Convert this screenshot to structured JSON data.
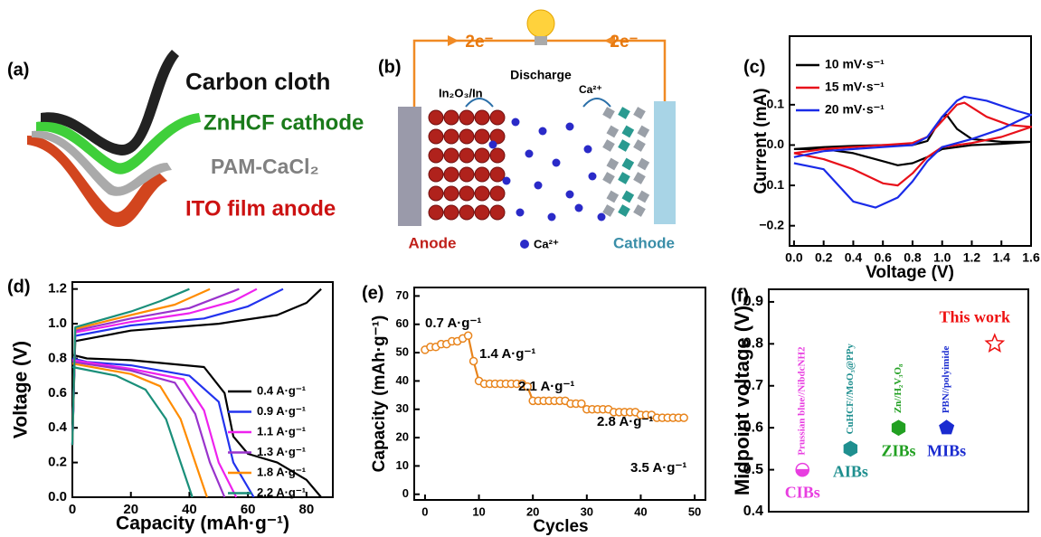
{
  "diagrams": {
    "a": {
      "panel": "(a)",
      "layers": [
        "Carbon cloth",
        "ZnHCF cathode",
        "PAM-CaCl₂",
        "ITO film anode"
      ]
    },
    "b": {
      "panel": "(b)",
      "electron_left": "2e⁻",
      "electron_right": "2e⁻",
      "process": "Discharge",
      "anode_material": "In₂O₃/In",
      "ion_label": "Ca²⁺",
      "anode": "Anode",
      "legend_ion": "Ca²⁺",
      "cathode": "Cathode"
    }
  },
  "chart_data": [
    {
      "type": "line",
      "panel": "(c)",
      "xlabel": "Voltage (V)",
      "ylabel": "Current (mA)",
      "xlim": [
        -0.03,
        1.6
      ],
      "ylim": [
        -0.25,
        0.27
      ],
      "xticks": [
        {
          "value": 0,
          "label": "0.0"
        },
        0.2,
        0.4,
        0.6,
        0.8,
        {
          "value": 1,
          "label": "1.0"
        },
        1.2,
        1.4,
        1.6
      ],
      "yticks": [
        {
          "value": -0.2,
          "label": "−0.2"
        },
        {
          "value": -0.1,
          "label": "−0.1"
        },
        {
          "value": 0,
          "label": "0.0"
        },
        0.1
      ],
      "series": [
        {
          "name": "10 mV·s⁻¹",
          "color": "#000000",
          "x": [
            0,
            0.2,
            0.4,
            0.6,
            0.8,
            0.9,
            0.95,
            1.0,
            1.03,
            1.1,
            1.2,
            1.4,
            1.6,
            1.4,
            1.2,
            1.0,
            0.9,
            0.8,
            0.7,
            0.6,
            0.4,
            0.2,
            0
          ],
          "values": [
            -0.01,
            -0.005,
            -0.002,
            0,
            0,
            0.01,
            0.04,
            0.07,
            0.075,
            0.04,
            0.015,
            0.008,
            0.008,
            0.003,
            0,
            -0.01,
            -0.03,
            -0.045,
            -0.05,
            -0.04,
            -0.02,
            -0.01,
            -0.01
          ]
        },
        {
          "name": "15 mV·s⁻¹",
          "color": "#e8101a",
          "x": [
            0,
            0.2,
            0.4,
            0.6,
            0.8,
            0.9,
            1.0,
            1.1,
            1.15,
            1.3,
            1.45,
            1.6,
            1.4,
            1.2,
            1.0,
            0.9,
            0.8,
            0.7,
            0.6,
            0.4,
            0.2,
            0
          ],
          "values": [
            -0.02,
            -0.01,
            -0.005,
            0,
            0.005,
            0.02,
            0.06,
            0.1,
            0.105,
            0.07,
            0.05,
            0.045,
            0.02,
            0.005,
            -0.005,
            -0.03,
            -0.07,
            -0.1,
            -0.095,
            -0.06,
            -0.035,
            -0.02
          ]
        },
        {
          "name": "20 mV·s⁻¹",
          "color": "#1a2be8",
          "x": [
            0,
            0.2,
            0.4,
            0.6,
            0.8,
            0.9,
            1.0,
            1.1,
            1.15,
            1.3,
            1.5,
            1.6,
            1.4,
            1.2,
            1.0,
            0.9,
            0.8,
            0.7,
            0.55,
            0.4,
            0.2,
            0
          ],
          "values": [
            -0.03,
            -0.015,
            -0.01,
            -0.005,
            0,
            0.02,
            0.07,
            0.11,
            0.12,
            0.11,
            0.085,
            0.075,
            0.04,
            0.015,
            -0.005,
            -0.04,
            -0.09,
            -0.13,
            -0.155,
            -0.14,
            -0.06,
            -0.045
          ]
        }
      ]
    },
    {
      "type": "line",
      "panel": "(d)",
      "xlabel": "Capacity (mAh·g⁻¹)",
      "ylabel": "Voltage (V)",
      "xlim": [
        0,
        89
      ],
      "ylim": [
        0,
        1.24
      ],
      "xticks": [
        0,
        20,
        40,
        60,
        80
      ],
      "yticks": [
        {
          "value": 0,
          "label": "0.0"
        },
        0.2,
        0.4,
        0.6,
        0.8,
        {
          "value": 1,
          "label": "1.0"
        },
        1.2
      ],
      "series": [
        {
          "name": "0.4 A·g⁻¹",
          "color": "#000000",
          "x": [
            0,
            1,
            20,
            50,
            70,
            80,
            85,
            null,
            0,
            5,
            20,
            45,
            52,
            55,
            60,
            70,
            80,
            85
          ],
          "values": [
            0.3,
            0.9,
            0.96,
            1.0,
            1.05,
            1.12,
            1.2,
            null,
            0.82,
            0.8,
            0.79,
            0.75,
            0.6,
            0.35,
            0.25,
            0.2,
            0.1,
            0
          ]
        },
        {
          "name": "0.9 A·g⁻¹",
          "color": "#2233ee",
          "x": [
            0,
            1,
            20,
            45,
            60,
            72,
            null,
            0,
            5,
            20,
            40,
            50,
            55,
            62
          ],
          "values": [
            0.3,
            0.93,
            0.99,
            1.03,
            1.1,
            1.2,
            null,
            0.8,
            0.78,
            0.76,
            0.7,
            0.55,
            0.2,
            0
          ]
        },
        {
          "name": "1.1 A·g⁻¹",
          "color": "#ee22ee",
          "x": [
            0,
            1,
            20,
            40,
            55,
            63,
            null,
            0,
            20,
            38,
            45,
            50,
            56
          ],
          "values": [
            0.3,
            0.95,
            1.01,
            1.06,
            1.13,
            1.2,
            null,
            0.79,
            0.74,
            0.68,
            0.5,
            0.2,
            0
          ]
        },
        {
          "name": "1.3 A·g⁻¹",
          "color": "#9933cc",
          "x": [
            0,
            1,
            20,
            40,
            57,
            null,
            0,
            20,
            35,
            42,
            47,
            52
          ],
          "values": [
            0.3,
            0.96,
            1.03,
            1.09,
            1.2,
            null,
            0.78,
            0.73,
            0.66,
            0.48,
            0.2,
            0
          ]
        },
        {
          "name": "1.8 A·g⁻¹",
          "color": "#ff8c00",
          "x": [
            0,
            1,
            20,
            35,
            47,
            null,
            0,
            20,
            30,
            37,
            42,
            46
          ],
          "values": [
            0.3,
            0.97,
            1.05,
            1.11,
            1.2,
            null,
            0.77,
            0.71,
            0.64,
            0.45,
            0.2,
            0
          ]
        },
        {
          "name": "2.2 A·g⁻¹",
          "color": "#1a8f7a",
          "x": [
            0,
            1,
            20,
            30,
            40,
            null,
            0,
            15,
            25,
            32,
            37,
            41
          ],
          "values": [
            0.3,
            0.98,
            1.07,
            1.13,
            1.2,
            null,
            0.75,
            0.7,
            0.62,
            0.45,
            0.2,
            0
          ]
        }
      ]
    },
    {
      "type": "line",
      "panel": "(e)",
      "xlabel": "Cycles",
      "ylabel": "Capacity (mAh·g⁻¹)",
      "markers": true,
      "xlim": [
        -2,
        52
      ],
      "ylim": [
        -2,
        73
      ],
      "xticks": [
        0,
        10,
        20,
        30,
        40,
        50
      ],
      "yticks": [
        0,
        10,
        20,
        30,
        40,
        50,
        60,
        70
      ],
      "annotations": [
        "0.7 A·g⁻¹",
        "1.4 A·g⁻¹",
        "2.1 A·g⁻¹",
        "2.8 A·g⁻¹",
        "3.5 A·g⁻¹"
      ],
      "series": [
        {
          "color": "#e8841c",
          "x": [
            0,
            1,
            2,
            3,
            4,
            5,
            6,
            7,
            8,
            9,
            10,
            11,
            12,
            13,
            14,
            15,
            16,
            17,
            18,
            19,
            20,
            21,
            22,
            23,
            24,
            25,
            26,
            27,
            28,
            29,
            30,
            31,
            32,
            33,
            34,
            35,
            36,
            37,
            38,
            39,
            40,
            41,
            42,
            43,
            44,
            45,
            46,
            47,
            48
          ],
          "values": [
            51,
            52,
            52,
            53,
            53,
            54,
            54,
            55,
            56,
            47,
            40,
            39,
            39,
            39,
            39,
            39,
            39,
            39,
            39,
            38,
            33,
            33,
            33,
            33,
            33,
            33,
            33,
            32,
            32,
            32,
            30,
            30,
            30,
            30,
            30,
            29,
            29,
            29,
            29,
            29,
            28,
            28,
            28,
            27,
            27,
            27,
            27,
            27,
            27
          ]
        }
      ]
    },
    {
      "type": "scatter",
      "panel": "(f)",
      "ylabel": "Midpoint voltage (V)",
      "ylim": [
        0.4,
        0.93
      ],
      "yticks": [
        0.4,
        0.5,
        0.6,
        0.7,
        0.8,
        0.9
      ],
      "points": [
        {
          "label": "CIBs",
          "system": "Prussian blue//NibdcNH2",
          "value": 0.5,
          "color": "#e83ee0",
          "marker": "circle"
        },
        {
          "label": "AIBs",
          "system": "CuHCF//MoO₃@PPy",
          "value": 0.55,
          "color": "#1f8f8f",
          "marker": "hexagon"
        },
        {
          "label": "ZIBs",
          "system": "Zn//H₂V₃O₈",
          "value": 0.6,
          "color": "#22a022",
          "marker": "hexagon"
        },
        {
          "label": "MIBs",
          "system": "PBN//polyimide",
          "value": 0.6,
          "color": "#1a2bd0",
          "marker": "pentagon"
        },
        {
          "label": "This work",
          "value": 0.8,
          "color": "#ee1111",
          "marker": "star"
        }
      ]
    }
  ]
}
